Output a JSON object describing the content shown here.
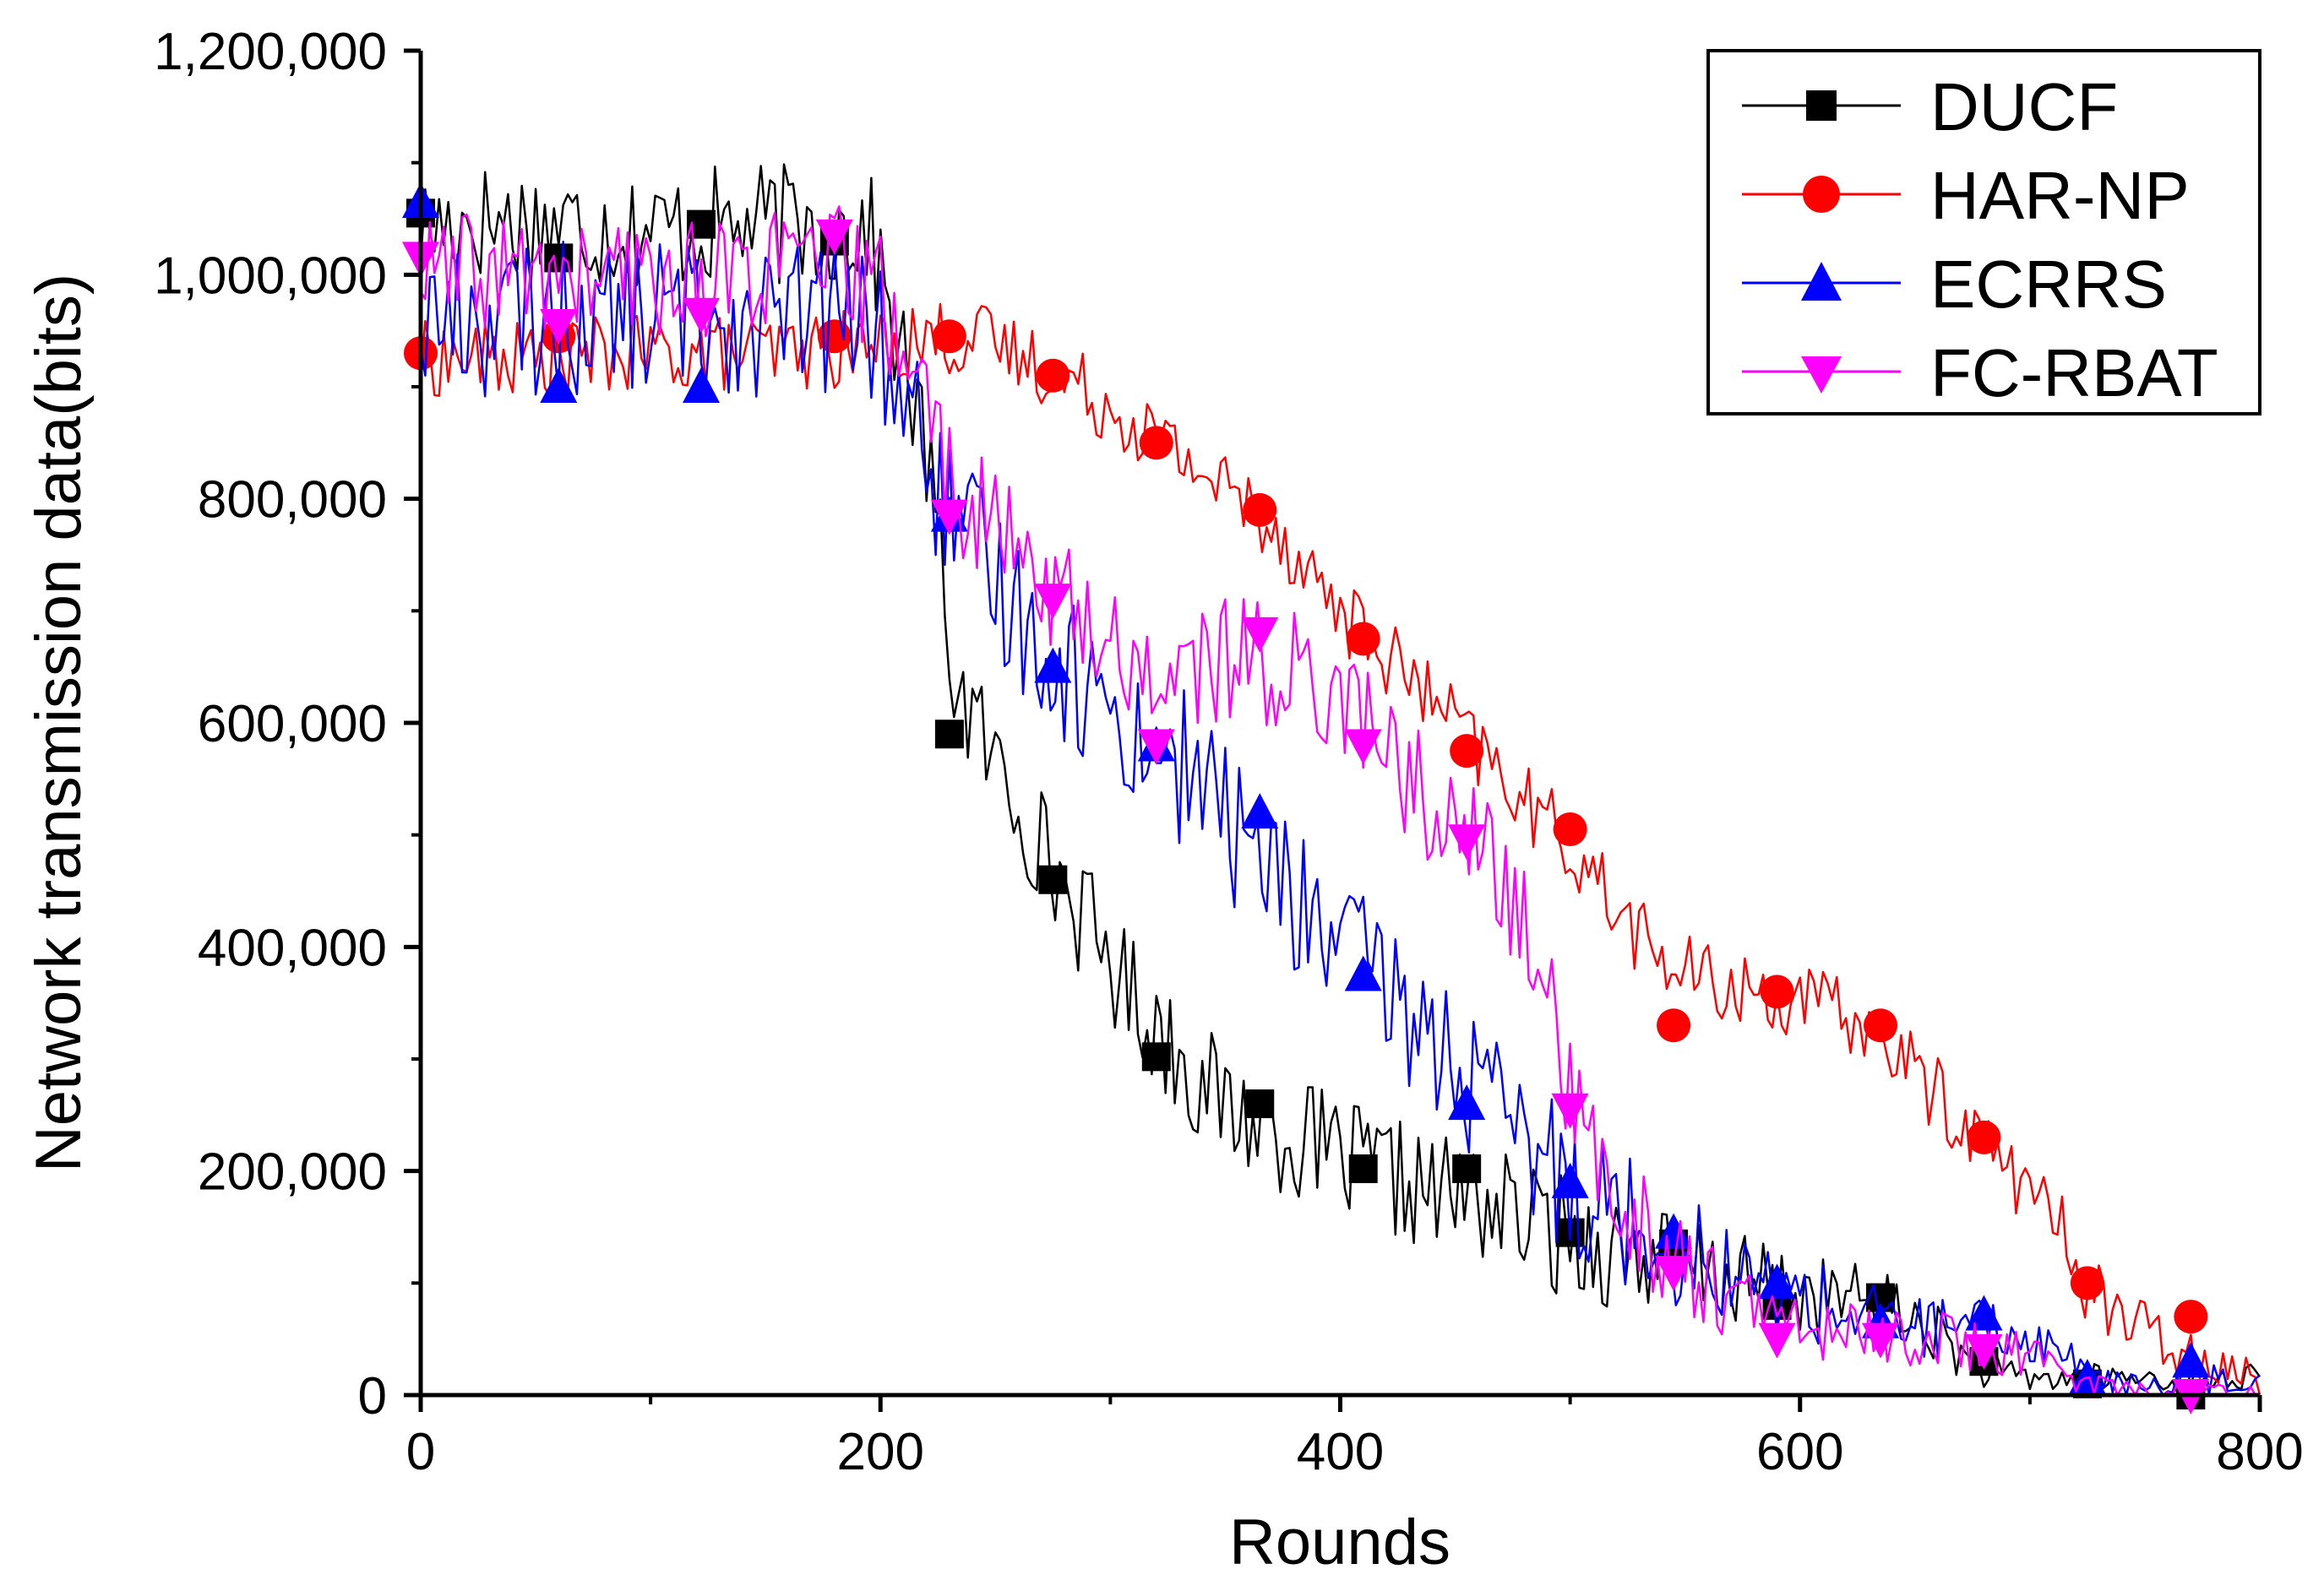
{
  "chart_data": {
    "type": "line",
    "title": "",
    "xlabel": "Rounds",
    "ylabel": "Network transmission data(bits)",
    "xlim": [
      0,
      800
    ],
    "ylim": [
      0,
      1200000
    ],
    "x_ticks": [
      0,
      200,
      400,
      600,
      800
    ],
    "y_ticks": [
      0,
      200000,
      400000,
      600000,
      800000,
      1000000,
      1200000
    ],
    "x_tick_labels": [
      "0",
      "200",
      "400",
      "600",
      "800"
    ],
    "y_tick_labels": [
      "0",
      "200,000",
      "400,000",
      "600,000",
      "800,000",
      "1,000,000",
      "1,200,000"
    ],
    "grid": false,
    "legend_position": "top-right",
    "series": [
      {
        "name": "DUCF",
        "color": "#000000",
        "marker": "square",
        "markers": [
          [
            0,
            1055000
          ],
          [
            60,
            1015000
          ],
          [
            122,
            1045000
          ],
          [
            180,
            1030000
          ],
          [
            230,
            590000
          ],
          [
            275,
            460000
          ],
          [
            320,
            302000
          ],
          [
            365,
            260000
          ],
          [
            410,
            202000
          ],
          [
            455,
            202000
          ],
          [
            500,
            145000
          ],
          [
            545,
            135000
          ],
          [
            590,
            80000
          ],
          [
            635,
            87000
          ],
          [
            680,
            30000
          ],
          [
            725,
            10000
          ],
          [
            770,
            0
          ]
        ],
        "trend": [
          [
            0,
            1040000
          ],
          [
            20,
            1050000
          ],
          [
            60,
            1045000
          ],
          [
            100,
            1040000
          ],
          [
            150,
            1045000
          ],
          [
            195,
            1040000
          ],
          [
            205,
            960000
          ],
          [
            215,
            880000
          ],
          [
            222,
            820000
          ],
          [
            232,
            640000
          ],
          [
            245,
            580000
          ],
          [
            260,
            530000
          ],
          [
            275,
            470000
          ],
          [
            290,
            420000
          ],
          [
            305,
            370000
          ],
          [
            320,
            330000
          ],
          [
            335,
            290000
          ],
          [
            350,
            255000
          ],
          [
            365,
            245000
          ],
          [
            380,
            230000
          ],
          [
            400,
            210000
          ],
          [
            420,
            195000
          ],
          [
            440,
            180000
          ],
          [
            460,
            175000
          ],
          [
            480,
            155000
          ],
          [
            500,
            140000
          ],
          [
            520,
            130000
          ],
          [
            540,
            120000
          ],
          [
            560,
            108000
          ],
          [
            580,
            98000
          ],
          [
            600,
            90000
          ],
          [
            620,
            85000
          ],
          [
            640,
            75000
          ],
          [
            660,
            55000
          ],
          [
            670,
            35000
          ],
          [
            680,
            20000
          ],
          [
            700,
            15000
          ],
          [
            800,
            15000
          ]
        ]
      },
      {
        "name": "HAR-NP",
        "color": "#ff0000",
        "marker": "circle",
        "markers": [
          [
            0,
            930000
          ],
          [
            60,
            945000
          ],
          [
            180,
            945000
          ],
          [
            230,
            945000
          ],
          [
            275,
            910000
          ],
          [
            320,
            850000
          ],
          [
            365,
            790000
          ],
          [
            410,
            675000
          ],
          [
            455,
            575000
          ],
          [
            500,
            505000
          ],
          [
            545,
            330000
          ],
          [
            590,
            360000
          ],
          [
            635,
            330000
          ],
          [
            680,
            230000
          ],
          [
            725,
            100000
          ],
          [
            770,
            70000
          ]
        ],
        "trend": [
          [
            0,
            925000
          ],
          [
            50,
            925000
          ],
          [
            100,
            930000
          ],
          [
            150,
            930000
          ],
          [
            200,
            935000
          ],
          [
            220,
            945000
          ],
          [
            245,
            940000
          ],
          [
            270,
            920000
          ],
          [
            290,
            895000
          ],
          [
            310,
            870000
          ],
          [
            330,
            840000
          ],
          [
            350,
            810000
          ],
          [
            370,
            780000
          ],
          [
            385,
            740000
          ],
          [
            400,
            700000
          ],
          [
            420,
            660000
          ],
          [
            440,
            620000
          ],
          [
            460,
            575000
          ],
          [
            480,
            530000
          ],
          [
            500,
            490000
          ],
          [
            515,
            450000
          ],
          [
            530,
            410000
          ],
          [
            545,
            380000
          ],
          [
            565,
            365000
          ],
          [
            590,
            355000
          ],
          [
            610,
            345000
          ],
          [
            630,
            330000
          ],
          [
            650,
            290000
          ],
          [
            665,
            255000
          ],
          [
            680,
            225000
          ],
          [
            700,
            185000
          ],
          [
            715,
            140000
          ],
          [
            725,
            100000
          ],
          [
            740,
            70000
          ],
          [
            760,
            45000
          ],
          [
            780,
            30000
          ],
          [
            790,
            25000
          ],
          [
            800,
            10000
          ]
        ]
      },
      {
        "name": "ECRRS",
        "color": "#0000ff",
        "marker": "triangle-up",
        "markers": [
          [
            0,
            1065000
          ],
          [
            60,
            900000
          ],
          [
            122,
            900000
          ],
          [
            230,
            785000
          ],
          [
            275,
            650000
          ],
          [
            320,
            580000
          ],
          [
            365,
            520000
          ],
          [
            410,
            375000
          ],
          [
            455,
            260000
          ],
          [
            500,
            190000
          ],
          [
            545,
            145000
          ],
          [
            590,
            100000
          ],
          [
            635,
            65000
          ],
          [
            680,
            72000
          ],
          [
            725,
            15000
          ],
          [
            770,
            30000
          ]
        ],
        "trend": [
          [
            0,
            960000
          ],
          [
            60,
            960000
          ],
          [
            100,
            965000
          ],
          [
            150,
            960000
          ],
          [
            190,
            960000
          ],
          [
            200,
            940000
          ],
          [
            210,
            890000
          ],
          [
            220,
            840000
          ],
          [
            230,
            780000
          ],
          [
            245,
            740000
          ],
          [
            260,
            700000
          ],
          [
            275,
            660000
          ],
          [
            290,
            630000
          ],
          [
            305,
            600000
          ],
          [
            320,
            575000
          ],
          [
            340,
            550000
          ],
          [
            355,
            500000
          ],
          [
            370,
            470000
          ],
          [
            385,
            430000
          ],
          [
            400,
            400000
          ],
          [
            420,
            360000
          ],
          [
            440,
            320000
          ],
          [
            460,
            270000
          ],
          [
            475,
            230000
          ],
          [
            490,
            205000
          ],
          [
            505,
            190000
          ],
          [
            520,
            165000
          ],
          [
            540,
            140000
          ],
          [
            560,
            120000
          ],
          [
            580,
            100000
          ],
          [
            600,
            85000
          ],
          [
            620,
            75000
          ],
          [
            640,
            65000
          ],
          [
            660,
            60000
          ],
          [
            680,
            58000
          ],
          [
            700,
            50000
          ],
          [
            715,
            40000
          ],
          [
            725,
            15000
          ],
          [
            740,
            10000
          ],
          [
            760,
            5000
          ],
          [
            780,
            15000
          ],
          [
            800,
            15000
          ]
        ]
      },
      {
        "name": "FC-RBAT",
        "color": "#ff00ff",
        "marker": "triangle-down",
        "markers": [
          [
            0,
            1015000
          ],
          [
            60,
            955000
          ],
          [
            122,
            965000
          ],
          [
            180,
            1035000
          ],
          [
            230,
            785000
          ],
          [
            275,
            710000
          ],
          [
            320,
            580000
          ],
          [
            365,
            680000
          ],
          [
            410,
            580000
          ],
          [
            455,
            495000
          ],
          [
            500,
            255000
          ],
          [
            545,
            110000
          ],
          [
            590,
            50000
          ],
          [
            635,
            50000
          ],
          [
            680,
            40000
          ],
          [
            770,
            0
          ]
        ],
        "trend": [
          [
            0,
            1000000
          ],
          [
            40,
            1000000
          ],
          [
            80,
            995000
          ],
          [
            130,
            1000000
          ],
          [
            180,
            1010000
          ],
          [
            200,
            980000
          ],
          [
            215,
            920000
          ],
          [
            225,
            850000
          ],
          [
            235,
            800000
          ],
          [
            250,
            770000
          ],
          [
            265,
            740000
          ],
          [
            280,
            710000
          ],
          [
            295,
            680000
          ],
          [
            310,
            650000
          ],
          [
            325,
            640000
          ],
          [
            340,
            650000
          ],
          [
            355,
            660000
          ],
          [
            370,
            650000
          ],
          [
            385,
            640000
          ],
          [
            400,
            630000
          ],
          [
            415,
            590000
          ],
          [
            430,
            550000
          ],
          [
            445,
            510000
          ],
          [
            460,
            490000
          ],
          [
            475,
            440000
          ],
          [
            485,
            390000
          ],
          [
            495,
            330000
          ],
          [
            500,
            260000
          ],
          [
            510,
            210000
          ],
          [
            525,
            170000
          ],
          [
            540,
            130000
          ],
          [
            560,
            100000
          ],
          [
            580,
            75000
          ],
          [
            600,
            60000
          ],
          [
            630,
            55000
          ],
          [
            660,
            50000
          ],
          [
            680,
            40000
          ],
          [
            700,
            35000
          ],
          [
            715,
            20000
          ],
          [
            730,
            10000
          ],
          [
            750,
            2000
          ],
          [
            800,
            2000
          ]
        ]
      }
    ]
  }
}
